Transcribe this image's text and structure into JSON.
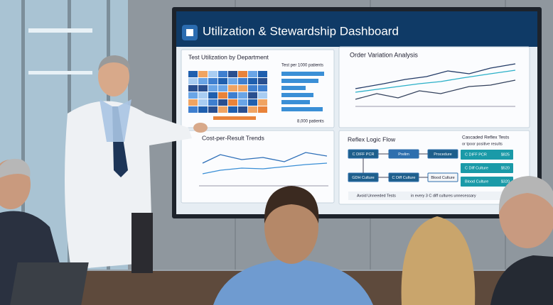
{
  "dashboard": {
    "title": "Utilization & Stewardship Dashboard",
    "panels": {
      "utilization": {
        "title": "Test Utilization by Department",
        "legend": "Test per 1000 patients",
        "note": "8,000 patients"
      },
      "variation": {
        "title": "Order Variation Analysis"
      },
      "cost": {
        "title": "Cost-per-Result Trends"
      },
      "reflex": {
        "title": "Reflex Logic Flow",
        "nodes": [
          "C DIFF PCR",
          "Prelim",
          "Procedure",
          "GDH Culture",
          "C Diff Culture",
          "Blood Culture"
        ],
        "footer_left": "Avoid Unneeded Tests",
        "footer_right": "in every 3 C diff cultures unnecessary"
      },
      "cascade": {
        "title": "Cascaded Reflex Tests",
        "subtitle": "or tpoor positive results",
        "items": [
          {
            "label": "C DIFF PCR",
            "cost": "$825"
          },
          {
            "label": "C Diff Culture",
            "cost": "$520"
          },
          {
            "label": "Blood Culture",
            "cost": "$320"
          }
        ]
      }
    }
  }
}
